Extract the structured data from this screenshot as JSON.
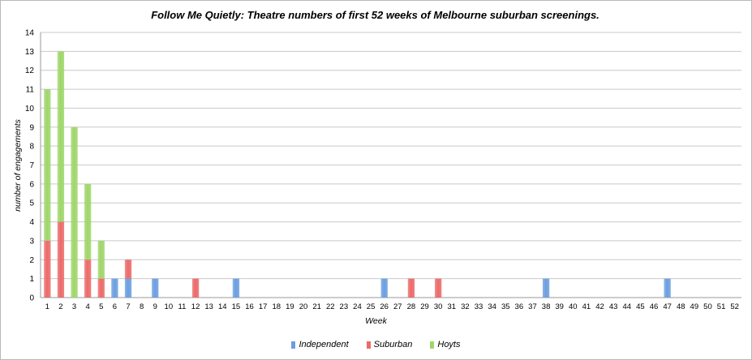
{
  "chart_data": {
    "type": "bar",
    "stacked": true,
    "title": "Follow Me Quietly: Theatre numbers of first 52 weeks of Melbourne suburban screenings.",
    "xlabel": "Week",
    "ylabel": "number of engagements",
    "ylim": [
      0,
      14
    ],
    "yticks": [
      0,
      1,
      2,
      3,
      4,
      5,
      6,
      7,
      8,
      9,
      10,
      11,
      12,
      13,
      14
    ],
    "grid": true,
    "legend_position": "bottom",
    "categories": [
      "1",
      "2",
      "3",
      "4",
      "5",
      "6",
      "7",
      "8",
      "9",
      "10",
      "11",
      "12",
      "13",
      "14",
      "15",
      "16",
      "17",
      "18",
      "19",
      "20",
      "21",
      "22",
      "23",
      "24",
      "25",
      "26",
      "27",
      "28",
      "29",
      "30",
      "31",
      "32",
      "33",
      "34",
      "35",
      "36",
      "37",
      "38",
      "39",
      "40",
      "41",
      "42",
      "43",
      "44",
      "45",
      "46",
      "47",
      "48",
      "49",
      "50",
      "51",
      "52"
    ],
    "series": [
      {
        "name": "Independent",
        "color": "#6b9ee0",
        "values": [
          0,
          0,
          0,
          0,
          0,
          1,
          1,
          0,
          1,
          0,
          0,
          0,
          0,
          0,
          1,
          0,
          0,
          0,
          0,
          0,
          0,
          0,
          0,
          0,
          0,
          1,
          0,
          0,
          0,
          0,
          0,
          0,
          0,
          0,
          0,
          0,
          0,
          1,
          0,
          0,
          0,
          0,
          0,
          0,
          0,
          0,
          1,
          0,
          0,
          0,
          0,
          0
        ]
      },
      {
        "name": "Suburban",
        "color": "#ec6a6a",
        "values": [
          3,
          4,
          0,
          2,
          1,
          0,
          1,
          0,
          0,
          0,
          0,
          1,
          0,
          0,
          0,
          0,
          0,
          0,
          0,
          0,
          0,
          0,
          0,
          0,
          0,
          0,
          0,
          1,
          0,
          1,
          0,
          0,
          0,
          0,
          0,
          0,
          0,
          0,
          0,
          0,
          0,
          0,
          0,
          0,
          0,
          0,
          0,
          0,
          0,
          0,
          0,
          0
        ]
      },
      {
        "name": "Hoyts",
        "color": "#9fd66a",
        "values": [
          8,
          9,
          9,
          4,
          2,
          0,
          0,
          0,
          0,
          0,
          0,
          0,
          0,
          0,
          0,
          0,
          0,
          0,
          0,
          0,
          0,
          0,
          0,
          0,
          0,
          0,
          0,
          0,
          0,
          0,
          0,
          0,
          0,
          0,
          0,
          0,
          0,
          0,
          0,
          0,
          0,
          0,
          0,
          0,
          0,
          0,
          0,
          0,
          0,
          0,
          0,
          0
        ]
      }
    ]
  }
}
